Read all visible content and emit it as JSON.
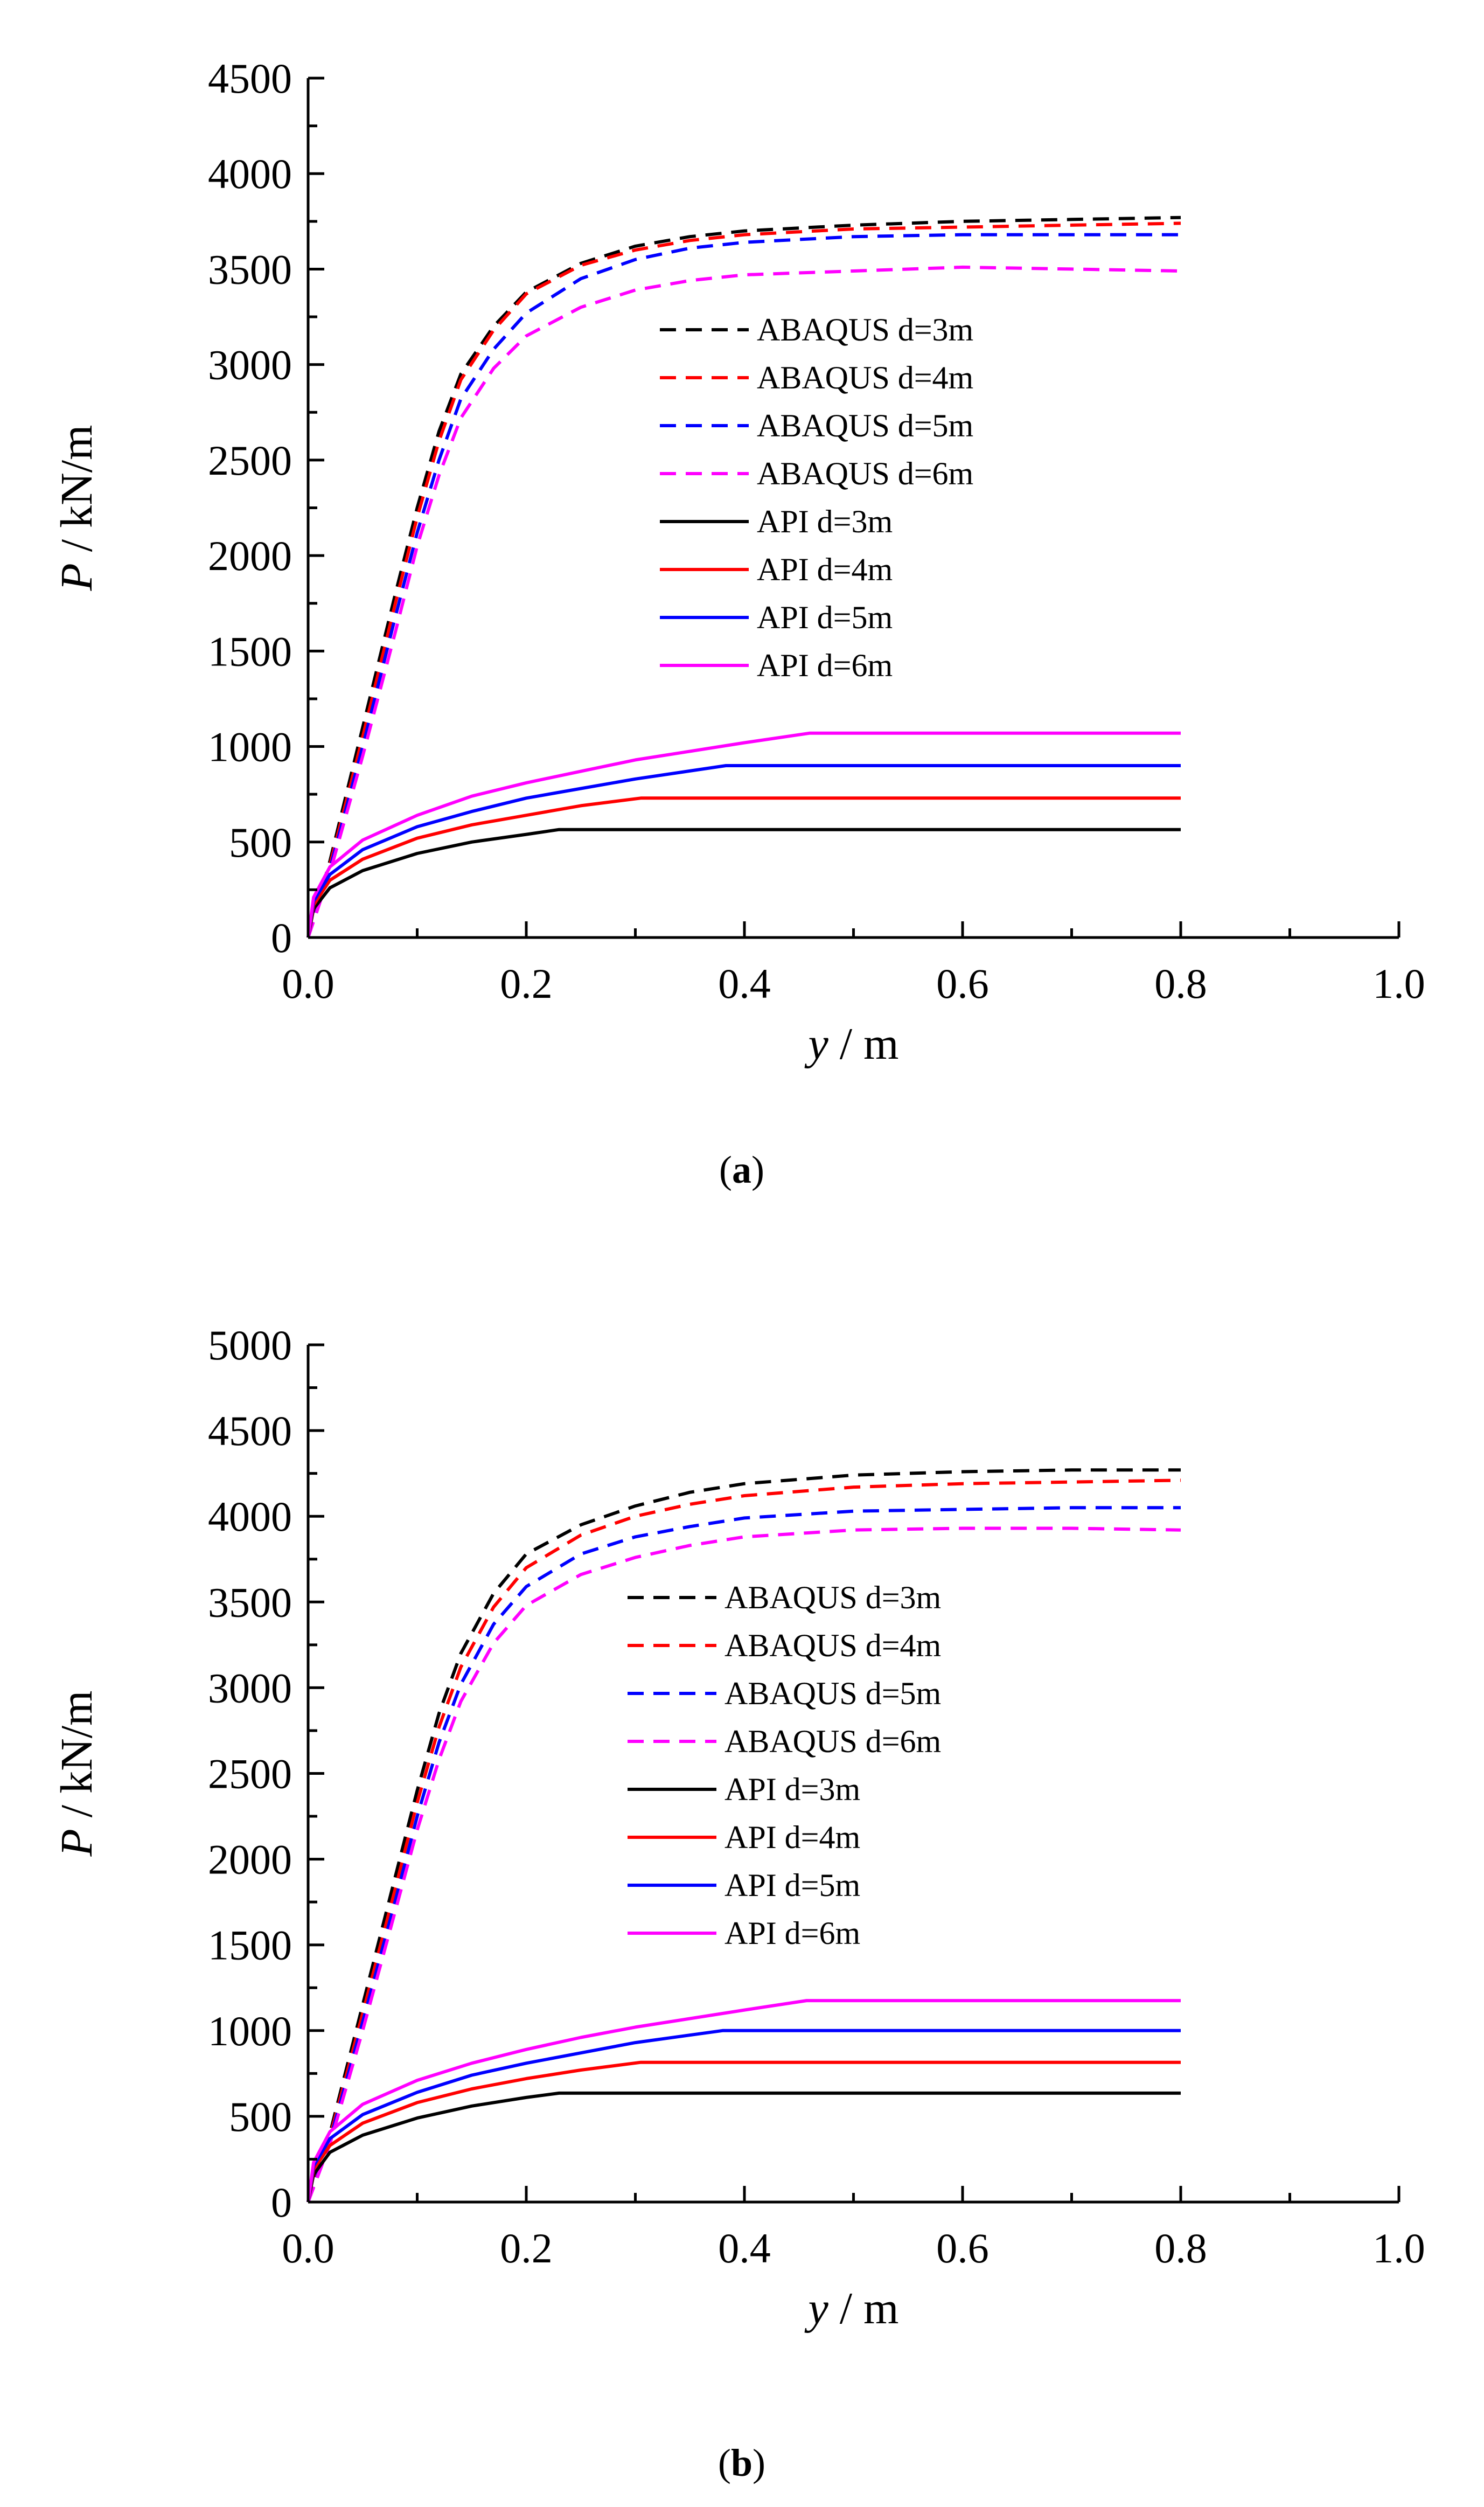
{
  "chart_data": [
    {
      "type": "line",
      "caption_label": "a",
      "caption_open": "(",
      "caption_close": ")",
      "xlabel_var": "y",
      "xlabel_unit": " / m",
      "ylabel_var": "P",
      "ylabel_unit": " / kN/m",
      "xlim": [
        0,
        1.0
      ],
      "ylim": [
        0,
        4500
      ],
      "x_ticks": [
        "0.0",
        "0.2",
        "0.4",
        "0.6",
        "0.8",
        "1.0"
      ],
      "y_ticks": [
        "0",
        "500",
        "1000",
        "1500",
        "2000",
        "2500",
        "3000",
        "3500",
        "4000",
        "4500"
      ],
      "series": [
        {
          "name": "ABAQUS  d=3m",
          "color": "#000000",
          "dash": true,
          "x": [
            0,
            0.02,
            0.05,
            0.08,
            0.1,
            0.12,
            0.14,
            0.17,
            0.2,
            0.25,
            0.3,
            0.35,
            0.4,
            0.5,
            0.6,
            0.7,
            0.8
          ],
          "y": [
            0,
            400,
            1100,
            1800,
            2250,
            2650,
            2950,
            3200,
            3380,
            3530,
            3620,
            3670,
            3700,
            3730,
            3750,
            3760,
            3770
          ]
        },
        {
          "name": "ABAQUS  d=4m",
          "color": "#ff0000",
          "dash": true,
          "x": [
            0,
            0.02,
            0.05,
            0.08,
            0.1,
            0.12,
            0.14,
            0.17,
            0.2,
            0.25,
            0.3,
            0.35,
            0.4,
            0.5,
            0.6,
            0.7,
            0.8
          ],
          "y": [
            0,
            380,
            1050,
            1750,
            2200,
            2600,
            2920,
            3180,
            3370,
            3520,
            3600,
            3650,
            3680,
            3710,
            3720,
            3730,
            3740
          ]
        },
        {
          "name": "ABAQUS  d=5m",
          "color": "#0000ff",
          "dash": true,
          "x": [
            0,
            0.02,
            0.05,
            0.08,
            0.1,
            0.12,
            0.14,
            0.17,
            0.2,
            0.25,
            0.3,
            0.35,
            0.4,
            0.5,
            0.6,
            0.7,
            0.8
          ],
          "y": [
            0,
            360,
            1000,
            1680,
            2120,
            2500,
            2820,
            3080,
            3270,
            3450,
            3550,
            3610,
            3640,
            3670,
            3680,
            3680,
            3680
          ]
        },
        {
          "name": "ABAQUS  d=6m",
          "color": "#ff00ff",
          "dash": true,
          "x": [
            0,
            0.02,
            0.05,
            0.08,
            0.1,
            0.12,
            0.14,
            0.17,
            0.2,
            0.25,
            0.3,
            0.35,
            0.4,
            0.5,
            0.6,
            0.7,
            0.8
          ],
          "y": [
            0,
            340,
            950,
            1600,
            2050,
            2420,
            2720,
            2980,
            3150,
            3300,
            3390,
            3440,
            3470,
            3490,
            3510,
            3500,
            3490
          ]
        },
        {
          "name": "API d=3m",
          "color": "#000000",
          "dash": false,
          "x": [
            0,
            0.005,
            0.02,
            0.05,
            0.1,
            0.15,
            0.2,
            0.23,
            0.3,
            0.4,
            0.5,
            0.6,
            0.7,
            0.8
          ],
          "y": [
            0,
            150,
            260,
            350,
            440,
            500,
            540,
            565,
            565,
            565,
            565,
            565,
            565,
            565
          ]
        },
        {
          "name": "API d=4m",
          "color": "#ff0000",
          "dash": false,
          "x": [
            0,
            0.005,
            0.02,
            0.05,
            0.1,
            0.15,
            0.2,
            0.25,
            0.305,
            0.4,
            0.5,
            0.6,
            0.7,
            0.8
          ],
          "y": [
            0,
            170,
            300,
            410,
            520,
            590,
            640,
            690,
            730,
            730,
            730,
            730,
            730,
            730
          ]
        },
        {
          "name": "API d=5m",
          "color": "#0000ff",
          "dash": false,
          "x": [
            0,
            0.005,
            0.02,
            0.05,
            0.1,
            0.15,
            0.2,
            0.25,
            0.3,
            0.383,
            0.5,
            0.6,
            0.7,
            0.8
          ],
          "y": [
            0,
            190,
            330,
            460,
            580,
            660,
            730,
            780,
            830,
            900,
            900,
            900,
            900,
            900
          ]
        },
        {
          "name": "API d=6m",
          "color": "#ff00ff",
          "dash": false,
          "x": [
            0,
            0.005,
            0.02,
            0.05,
            0.1,
            0.15,
            0.2,
            0.25,
            0.3,
            0.4,
            0.46,
            0.5,
            0.6,
            0.7,
            0.8
          ],
          "y": [
            0,
            210,
            370,
            510,
            640,
            740,
            810,
            870,
            930,
            1020,
            1070,
            1070,
            1070,
            1070,
            1070
          ]
        }
      ]
    },
    {
      "type": "line",
      "caption_label": "b",
      "caption_open": "(",
      "caption_close": ")",
      "xlabel_var": "y",
      "xlabel_unit": " / m",
      "ylabel_var": "P",
      "ylabel_unit": " / kN/m",
      "xlim": [
        0,
        1.0
      ],
      "ylim": [
        0,
        5000
      ],
      "x_ticks": [
        "0.0",
        "0.2",
        "0.4",
        "0.6",
        "0.8",
        "1.0"
      ],
      "y_ticks": [
        "0",
        "500",
        "1000",
        "1500",
        "2000",
        "2500",
        "3000",
        "3500",
        "4000",
        "4500",
        "5000"
      ],
      "series": [
        {
          "name": "ABAQUS  d=3m",
          "color": "#000000",
          "dash": true,
          "x": [
            0,
            0.02,
            0.05,
            0.08,
            0.1,
            0.12,
            0.14,
            0.17,
            0.2,
            0.25,
            0.3,
            0.35,
            0.4,
            0.5,
            0.6,
            0.7,
            0.8
          ],
          "y": [
            0,
            400,
            1150,
            1900,
            2400,
            2850,
            3200,
            3550,
            3780,
            3950,
            4060,
            4140,
            4190,
            4240,
            4260,
            4270,
            4270
          ]
        },
        {
          "name": "ABAQUS  d=4m",
          "color": "#ff0000",
          "dash": true,
          "x": [
            0,
            0.02,
            0.05,
            0.08,
            0.1,
            0.12,
            0.14,
            0.17,
            0.2,
            0.25,
            0.3,
            0.35,
            0.4,
            0.5,
            0.6,
            0.7,
            0.8
          ],
          "y": [
            0,
            380,
            1100,
            1830,
            2330,
            2770,
            3120,
            3470,
            3700,
            3890,
            4000,
            4070,
            4120,
            4170,
            4190,
            4200,
            4210
          ]
        },
        {
          "name": "ABAQUS  d=5m",
          "color": "#0000ff",
          "dash": true,
          "x": [
            0,
            0.02,
            0.05,
            0.08,
            0.1,
            0.12,
            0.14,
            0.17,
            0.2,
            0.25,
            0.3,
            0.35,
            0.4,
            0.5,
            0.6,
            0.7,
            0.8
          ],
          "y": [
            0,
            360,
            1050,
            1760,
            2250,
            2680,
            3020,
            3370,
            3590,
            3780,
            3880,
            3940,
            3990,
            4030,
            4040,
            4050,
            4050
          ]
        },
        {
          "name": "ABAQUS  d=6m",
          "color": "#ff00ff",
          "dash": true,
          "x": [
            0,
            0.02,
            0.05,
            0.08,
            0.1,
            0.12,
            0.14,
            0.17,
            0.2,
            0.25,
            0.3,
            0.35,
            0.4,
            0.5,
            0.6,
            0.7,
            0.8
          ],
          "y": [
            0,
            340,
            1000,
            1700,
            2170,
            2580,
            2920,
            3260,
            3480,
            3660,
            3760,
            3830,
            3880,
            3920,
            3930,
            3930,
            3920
          ]
        },
        {
          "name": "API d=3m",
          "color": "#000000",
          "dash": false,
          "x": [
            0,
            0.005,
            0.02,
            0.05,
            0.1,
            0.15,
            0.2,
            0.23,
            0.3,
            0.4,
            0.5,
            0.6,
            0.7,
            0.8
          ],
          "y": [
            0,
            160,
            290,
            390,
            490,
            560,
            610,
            635,
            635,
            635,
            635,
            635,
            635,
            635
          ]
        },
        {
          "name": "API d=4m",
          "color": "#ff0000",
          "dash": false,
          "x": [
            0,
            0.005,
            0.02,
            0.05,
            0.1,
            0.15,
            0.2,
            0.25,
            0.305,
            0.4,
            0.5,
            0.6,
            0.7,
            0.8
          ],
          "y": [
            0,
            190,
            330,
            460,
            580,
            660,
            720,
            770,
            815,
            815,
            815,
            815,
            815,
            815
          ]
        },
        {
          "name": "API d=5m",
          "color": "#0000ff",
          "dash": false,
          "x": [
            0,
            0.005,
            0.02,
            0.05,
            0.1,
            0.15,
            0.2,
            0.25,
            0.3,
            0.38,
            0.5,
            0.6,
            0.7,
            0.8
          ],
          "y": [
            0,
            210,
            370,
            510,
            640,
            740,
            810,
            870,
            930,
            1000,
            1000,
            1000,
            1000,
            1000
          ]
        },
        {
          "name": "API d=6m",
          "color": "#ff00ff",
          "dash": false,
          "x": [
            0,
            0.005,
            0.02,
            0.05,
            0.1,
            0.15,
            0.2,
            0.25,
            0.3,
            0.4,
            0.457,
            0.5,
            0.6,
            0.7,
            0.8
          ],
          "y": [
            0,
            230,
            410,
            570,
            710,
            810,
            890,
            960,
            1020,
            1120,
            1175,
            1175,
            1175,
            1175,
            1175
          ]
        }
      ]
    }
  ]
}
